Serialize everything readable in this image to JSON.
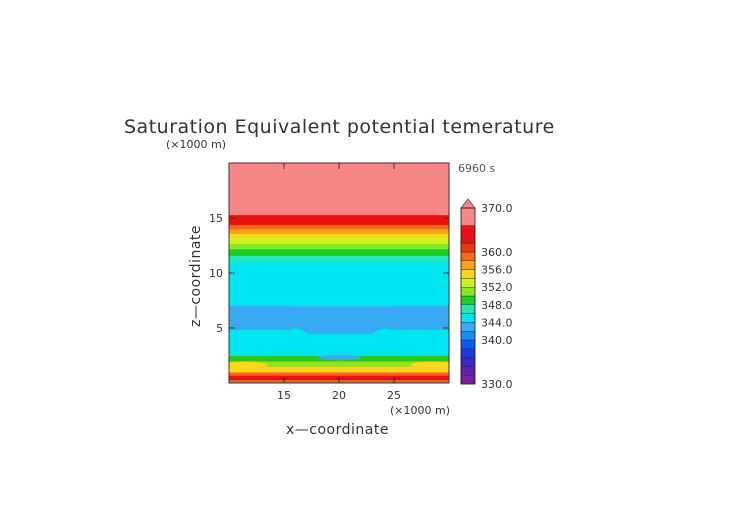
{
  "chart_data": {
    "type": "heatmap",
    "title": "Saturation Equivalent potential temerature",
    "time_label": "6960 s",
    "xlabel": "x—coordinate",
    "ylabel": "z—coordinate",
    "x_unit": "(×1000 m)",
    "y_unit": "(×1000 m)",
    "xlim": [
      10,
      30
    ],
    "ylim": [
      0,
      20
    ],
    "x_ticks": [
      15,
      20,
      25
    ],
    "y_ticks": [
      5,
      10,
      15
    ],
    "grid": false,
    "colorbar": {
      "min": 330,
      "max": 370,
      "tick_values": [
        370,
        360,
        356,
        352,
        348,
        344,
        340,
        330
      ],
      "tick_labels": [
        "370.0",
        "360.0",
        "356.0",
        "352.0",
        "348.0",
        "344.0",
        "340.0",
        "330.0"
      ],
      "levels": [
        {
          "from": 330,
          "to": 332,
          "color": "#7a1fa0"
        },
        {
          "from": 332,
          "to": 334,
          "color": "#5a22b8"
        },
        {
          "from": 334,
          "to": 336,
          "color": "#3828cc"
        },
        {
          "from": 336,
          "to": 338,
          "color": "#1a3ae0"
        },
        {
          "from": 338,
          "to": 340,
          "color": "#0a5cf0"
        },
        {
          "from": 340,
          "to": 342,
          "color": "#1a8cf4"
        },
        {
          "from": 342,
          "to": 344,
          "color": "#38aaf2"
        },
        {
          "from": 344,
          "to": 346,
          "color": "#00e6f0"
        },
        {
          "from": 346,
          "to": 348,
          "color": "#24e8b4"
        },
        {
          "from": 348,
          "to": 350,
          "color": "#22cc22"
        },
        {
          "from": 350,
          "to": 352,
          "color": "#8ce81c"
        },
        {
          "from": 352,
          "to": 354,
          "color": "#d2f01a"
        },
        {
          "from": 354,
          "to": 356,
          "color": "#f8d818"
        },
        {
          "from": 356,
          "to": 358,
          "color": "#f8a01a"
        },
        {
          "from": 358,
          "to": 360,
          "color": "#f46a1a"
        },
        {
          "from": 360,
          "to": 362,
          "color": "#f03418"
        },
        {
          "from": 362,
          "to": 366,
          "color": "#e81010"
        },
        {
          "from": 366,
          "to": 370,
          "color": "#f88888"
        }
      ]
    },
    "field_bands": [
      {
        "z0": 0.0,
        "z1": 0.3,
        "value": 358
      },
      {
        "z0": 0.3,
        "z1": 0.7,
        "value": 363
      },
      {
        "z0": 0.7,
        "z1": 1.0,
        "value": 358
      },
      {
        "z0": 1.0,
        "z1": 1.5,
        "value": 355
      },
      {
        "z0": 1.5,
        "z1": 2.0,
        "value": 351
      },
      {
        "z0": 2.0,
        "z1": 2.5,
        "value": 349
      },
      {
        "z0": 2.5,
        "z1": 5.0,
        "value": 345
      },
      {
        "z0": 5.0,
        "z1": 7.0,
        "value": 343
      },
      {
        "z0": 7.0,
        "z1": 11.0,
        "value": 345
      },
      {
        "z0": 11.0,
        "z1": 11.6,
        "value": 347
      },
      {
        "z0": 11.6,
        "z1": 12.2,
        "value": 349
      },
      {
        "z0": 12.2,
        "z1": 12.7,
        "value": 351
      },
      {
        "z0": 12.7,
        "z1": 13.2,
        "value": 353
      },
      {
        "z0": 13.2,
        "z1": 13.6,
        "value": 355
      },
      {
        "z0": 13.6,
        "z1": 14.0,
        "value": 357
      },
      {
        "z0": 14.0,
        "z1": 14.4,
        "value": 359
      },
      {
        "z0": 14.4,
        "z1": 15.3,
        "value": 363
      },
      {
        "z0": 15.3,
        "z1": 20.0,
        "value": 368
      }
    ],
    "features": [
      {
        "name": "low-level-warm-lobe-left",
        "x": 11.5,
        "z": 1.6,
        "rx": 2.0,
        "rz": 0.35,
        "value": 355
      },
      {
        "name": "low-level-warm-lobe-right",
        "x": 28.5,
        "z": 1.6,
        "rx": 2.0,
        "rz": 0.35,
        "value": 355
      },
      {
        "name": "center-cool-blob",
        "x": 20,
        "z": 2.3,
        "rx": 2.0,
        "rz": 0.25,
        "value": 343
      }
    ]
  }
}
